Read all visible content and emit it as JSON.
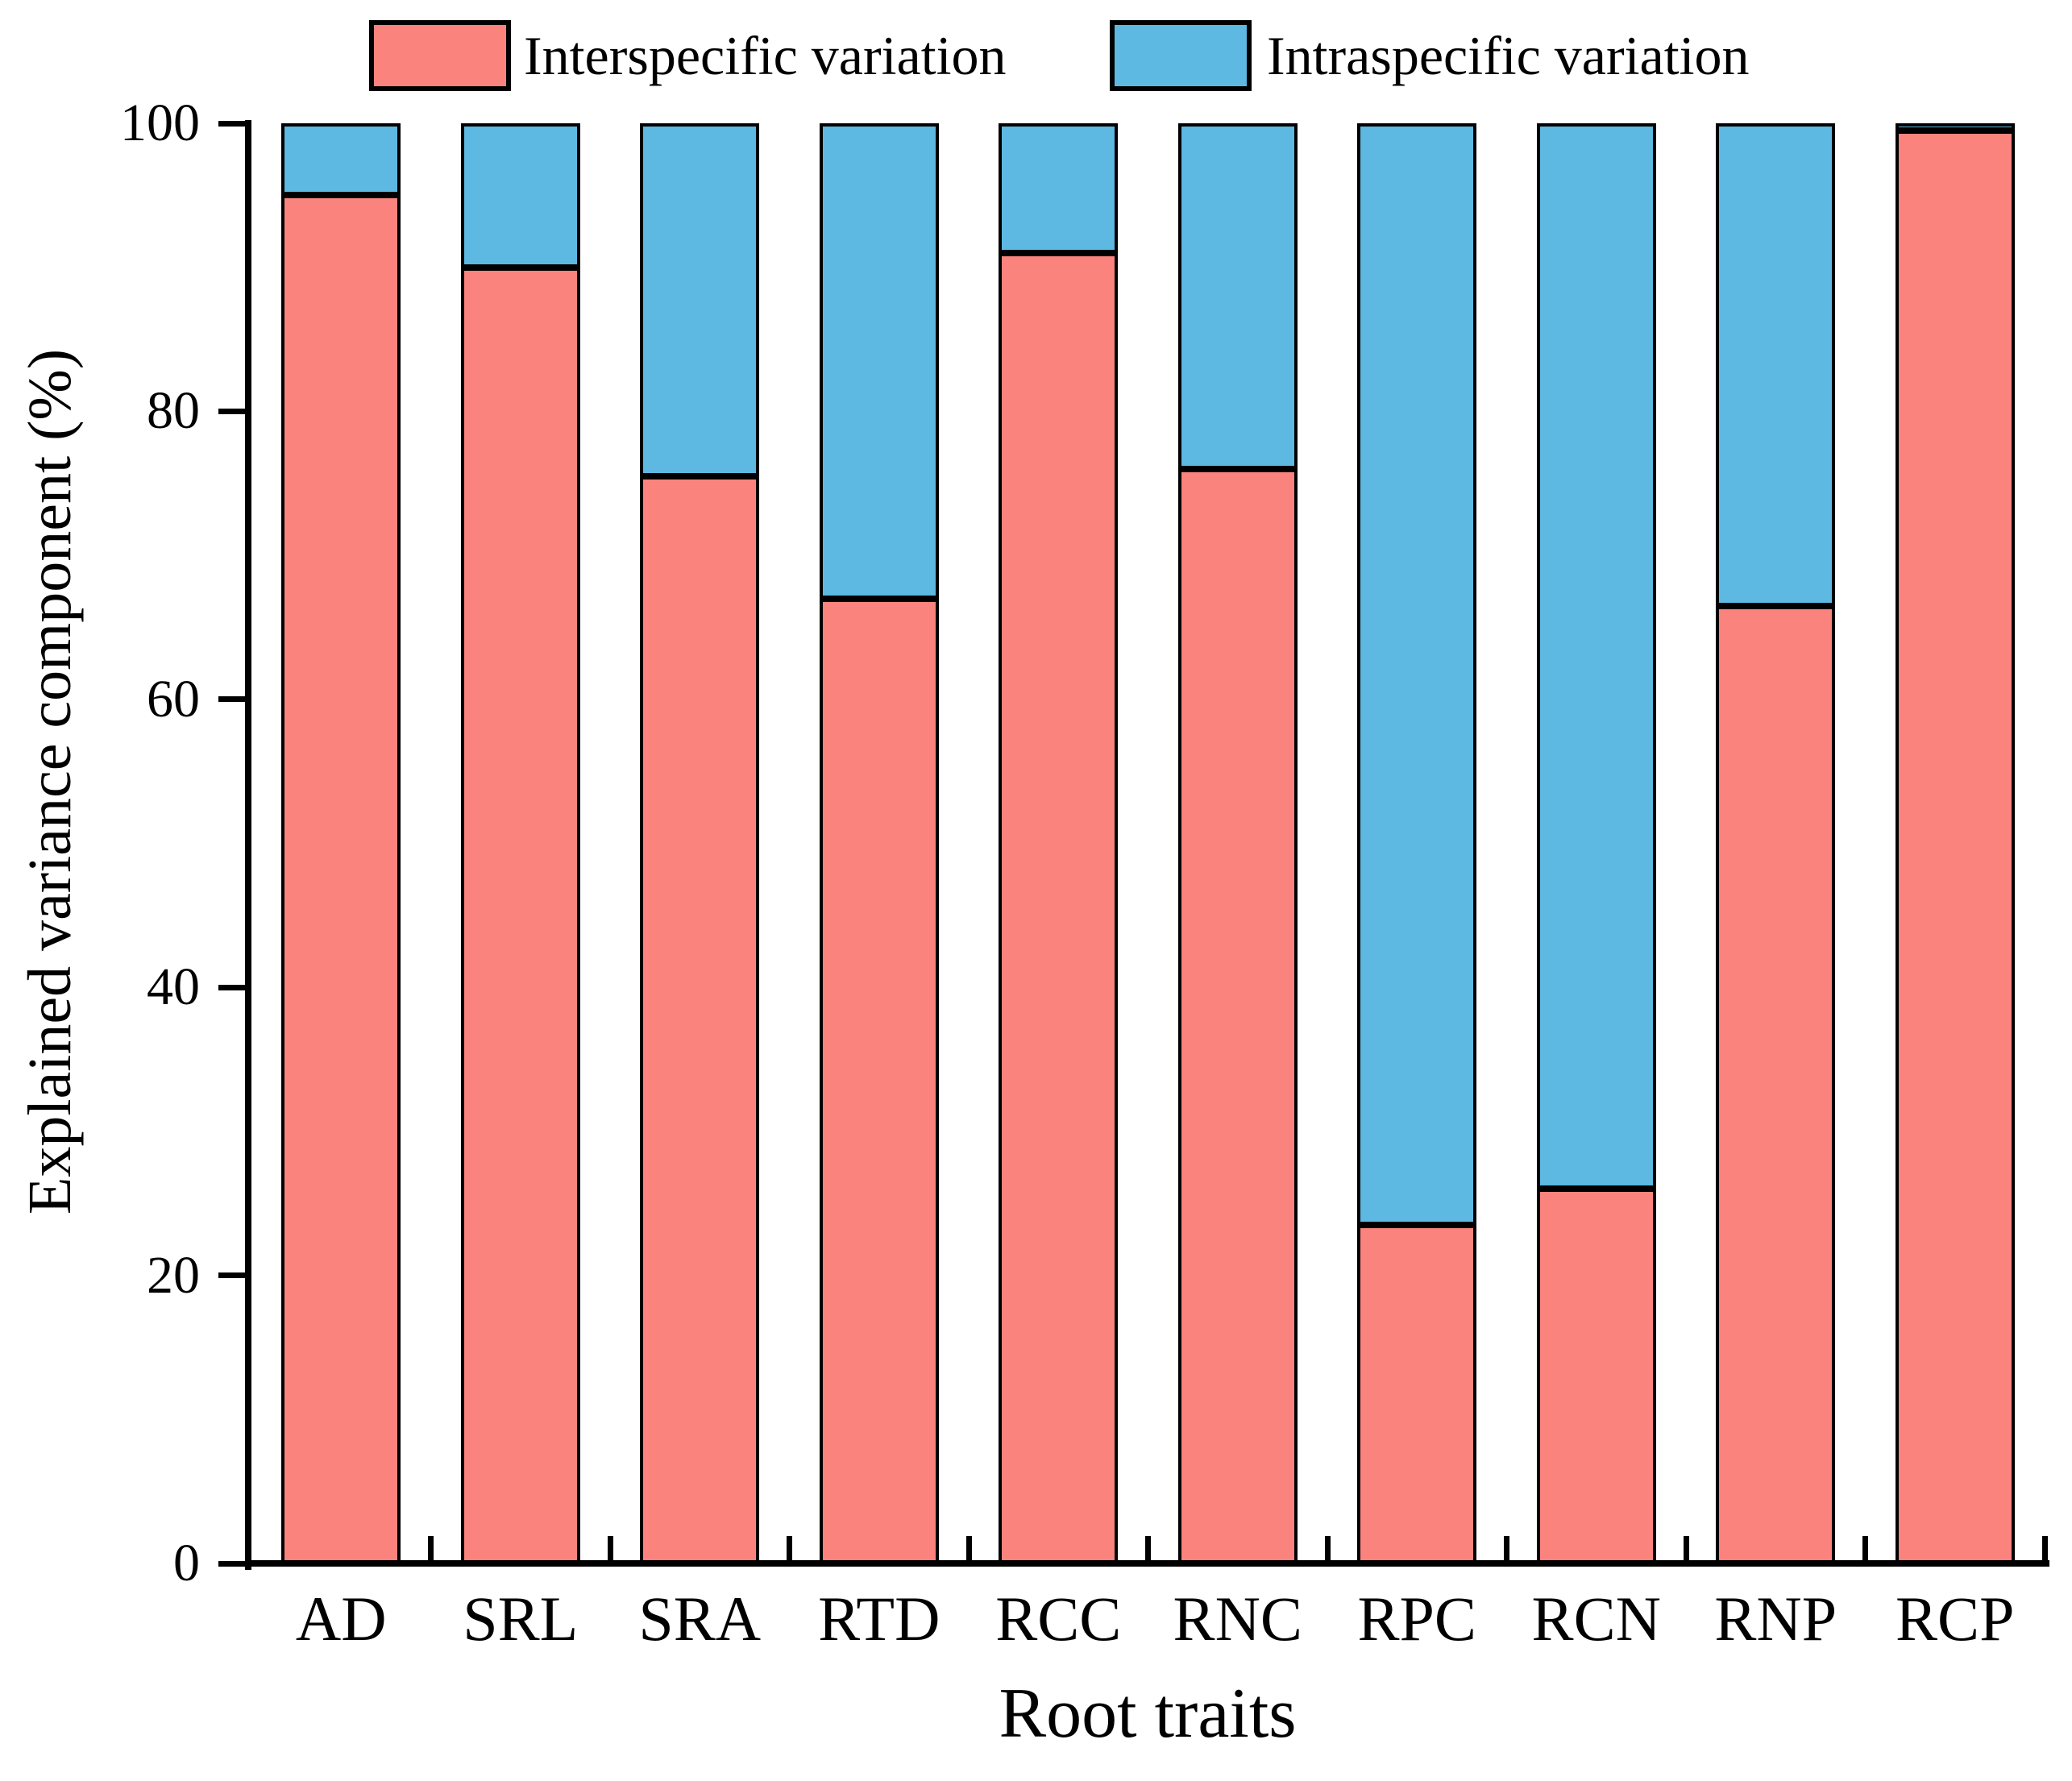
{
  "chart_data": {
    "type": "bar",
    "stacked": true,
    "categories": [
      "AD",
      "SRL",
      "SRA",
      "RTD",
      "RCC",
      "RNC",
      "RPC",
      "RCN",
      "RNP",
      "RCP"
    ],
    "series": [
      {
        "name": "Interspecific variation",
        "color": "#FA837E",
        "values": [
          95,
          90,
          75.5,
          67,
          91,
          76,
          23.5,
          26,
          66.5,
          99.5
        ]
      },
      {
        "name": "Intraspecific variation",
        "color": "#5DB8E2",
        "values": [
          5,
          10,
          24.5,
          33,
          9,
          24,
          76.5,
          74,
          33.5,
          0.5
        ]
      }
    ],
    "xlabel": "Root traits",
    "ylabel": "Explained variance component (%)",
    "ylim": [
      0,
      100
    ],
    "yticks": [
      0,
      20,
      40,
      60,
      80,
      100
    ],
    "legend_position": "top",
    "grid": false,
    "axis_color": "#000000",
    "background_color": "#FFFFFF"
  }
}
